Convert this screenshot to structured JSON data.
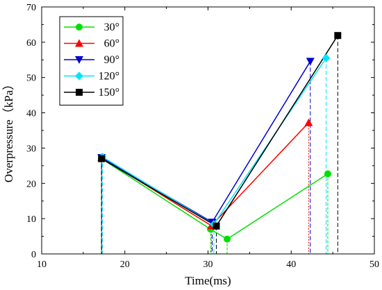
{
  "chart_data": {
    "type": "line",
    "title": "",
    "xlabel": "Time(ms)",
    "ylabel": "Overpressure（kPa）",
    "xlim": [
      10,
      50
    ],
    "ylim": [
      0,
      70
    ],
    "xticks": [
      10,
      20,
      30,
      40,
      50
    ],
    "yticks": [
      0,
      10,
      20,
      30,
      40,
      50,
      60,
      70
    ],
    "grid": false,
    "legend_position": "top-left",
    "series": [
      {
        "name": "30°",
        "color": "#00e000",
        "marker": "circle",
        "dash": "4,2",
        "x": [
          17.2,
          30.3,
          32.3,
          44.4
        ],
        "y": [
          27.0,
          7.0,
          4.2,
          22.7
        ]
      },
      {
        "name": "60°",
        "color": "#ff0000",
        "marker": "triangle-up",
        "dash": "2,2",
        "x": [
          17.2,
          30.4,
          42.1
        ],
        "y": [
          27.3,
          8.0,
          37.2
        ]
      },
      {
        "name": "90°",
        "color": "#0000cc",
        "marker": "triangle-down",
        "dash": "6,3",
        "x": [
          17.2,
          30.5,
          42.3
        ],
        "y": [
          27.3,
          9.0,
          54.6
        ]
      },
      {
        "name": "120°",
        "color": "#00e5ff",
        "marker": "diamond",
        "dash": "6,3",
        "x": [
          17.3,
          30.7,
          44.2
        ],
        "y": [
          27.5,
          8.4,
          55.5
        ]
      },
      {
        "name": "150°",
        "color": "#000000",
        "marker": "square",
        "dash": "6,3",
        "x": [
          17.2,
          31.0,
          45.6
        ],
        "y": [
          27.0,
          7.9,
          61.9
        ]
      }
    ]
  }
}
